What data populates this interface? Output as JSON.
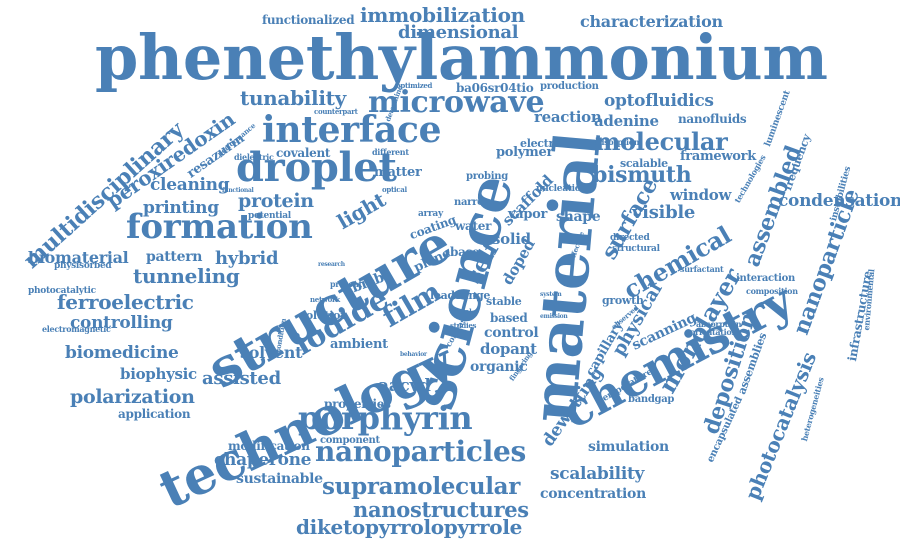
{
  "color": "#4a80b6",
  "words": [
    "phenethylammonium",
    "technology",
    "structure",
    "science",
    "material",
    "chemistry",
    "interface",
    "droplet",
    "formation",
    "microwave",
    "porphyrin",
    "nanoparticles",
    "iodide",
    "film",
    "supramolecular",
    "nanostructures",
    "diketopyrrolopyrrole",
    "immobilization",
    "dimensional",
    "characterization",
    "functionalized",
    "multidisciplinary",
    "peroxiredoxin",
    "tunability",
    "optofluidics",
    "molecular",
    "assembled",
    "bismuth",
    "surface",
    "chemical",
    "nanoparticle",
    "monolayer",
    "deposition",
    "photocatalysis",
    "physical",
    "condensation",
    "tunneling",
    "ferroelectric",
    "biomaterial",
    "hybrid",
    "protein",
    "printing",
    "cleaning",
    "light",
    "resazurin",
    "covalent",
    "dielectric",
    "controlling",
    "biomedicine",
    "biophysic",
    "assisted",
    "solvent",
    "polarization",
    "application",
    "modification",
    "chaperone",
    "sustainable",
    "scalability",
    "concentration",
    "aacvd",
    "properties",
    "component",
    "ambient",
    "organic",
    "dopant",
    "control",
    "based",
    "stable",
    "range",
    "lead",
    "plane",
    "base",
    "water",
    "narrow",
    "array",
    "coating",
    "self",
    "solid",
    "doped",
    "vapor",
    "scaffold",
    "dewetting",
    "capillary",
    "scanning",
    "visible",
    "window",
    "framework",
    "scalable",
    "adenine",
    "nanofluids",
    "reaction",
    "polymer",
    "electrode",
    "ba06sr04tio",
    "production",
    "optimized",
    "counterpart",
    "determine",
    "different",
    "matter",
    "probing",
    "nucleation",
    "shape",
    "directed",
    "structural",
    "growth",
    "interaction",
    "composition",
    "absorption",
    "orientation",
    "surfactant",
    "bandgap",
    "simulation",
    "temperature",
    "assemblies",
    "infrastructure",
    "encapsulated",
    "heterogeneities",
    "environmental",
    "instabilities",
    "frequency",
    "luminescent",
    "technologies",
    "adsorption",
    "pattern",
    "physisorbed",
    "photocatalytic",
    "electromagnetic",
    "potential",
    "functional",
    "performance",
    "effective",
    "observed",
    "system",
    "emission",
    "fingering",
    "contrast",
    "studies",
    "novel",
    "behavior",
    "research",
    "network",
    "solution",
    "present",
    "optical",
    "biobr",
    "condition"
  ]
}
